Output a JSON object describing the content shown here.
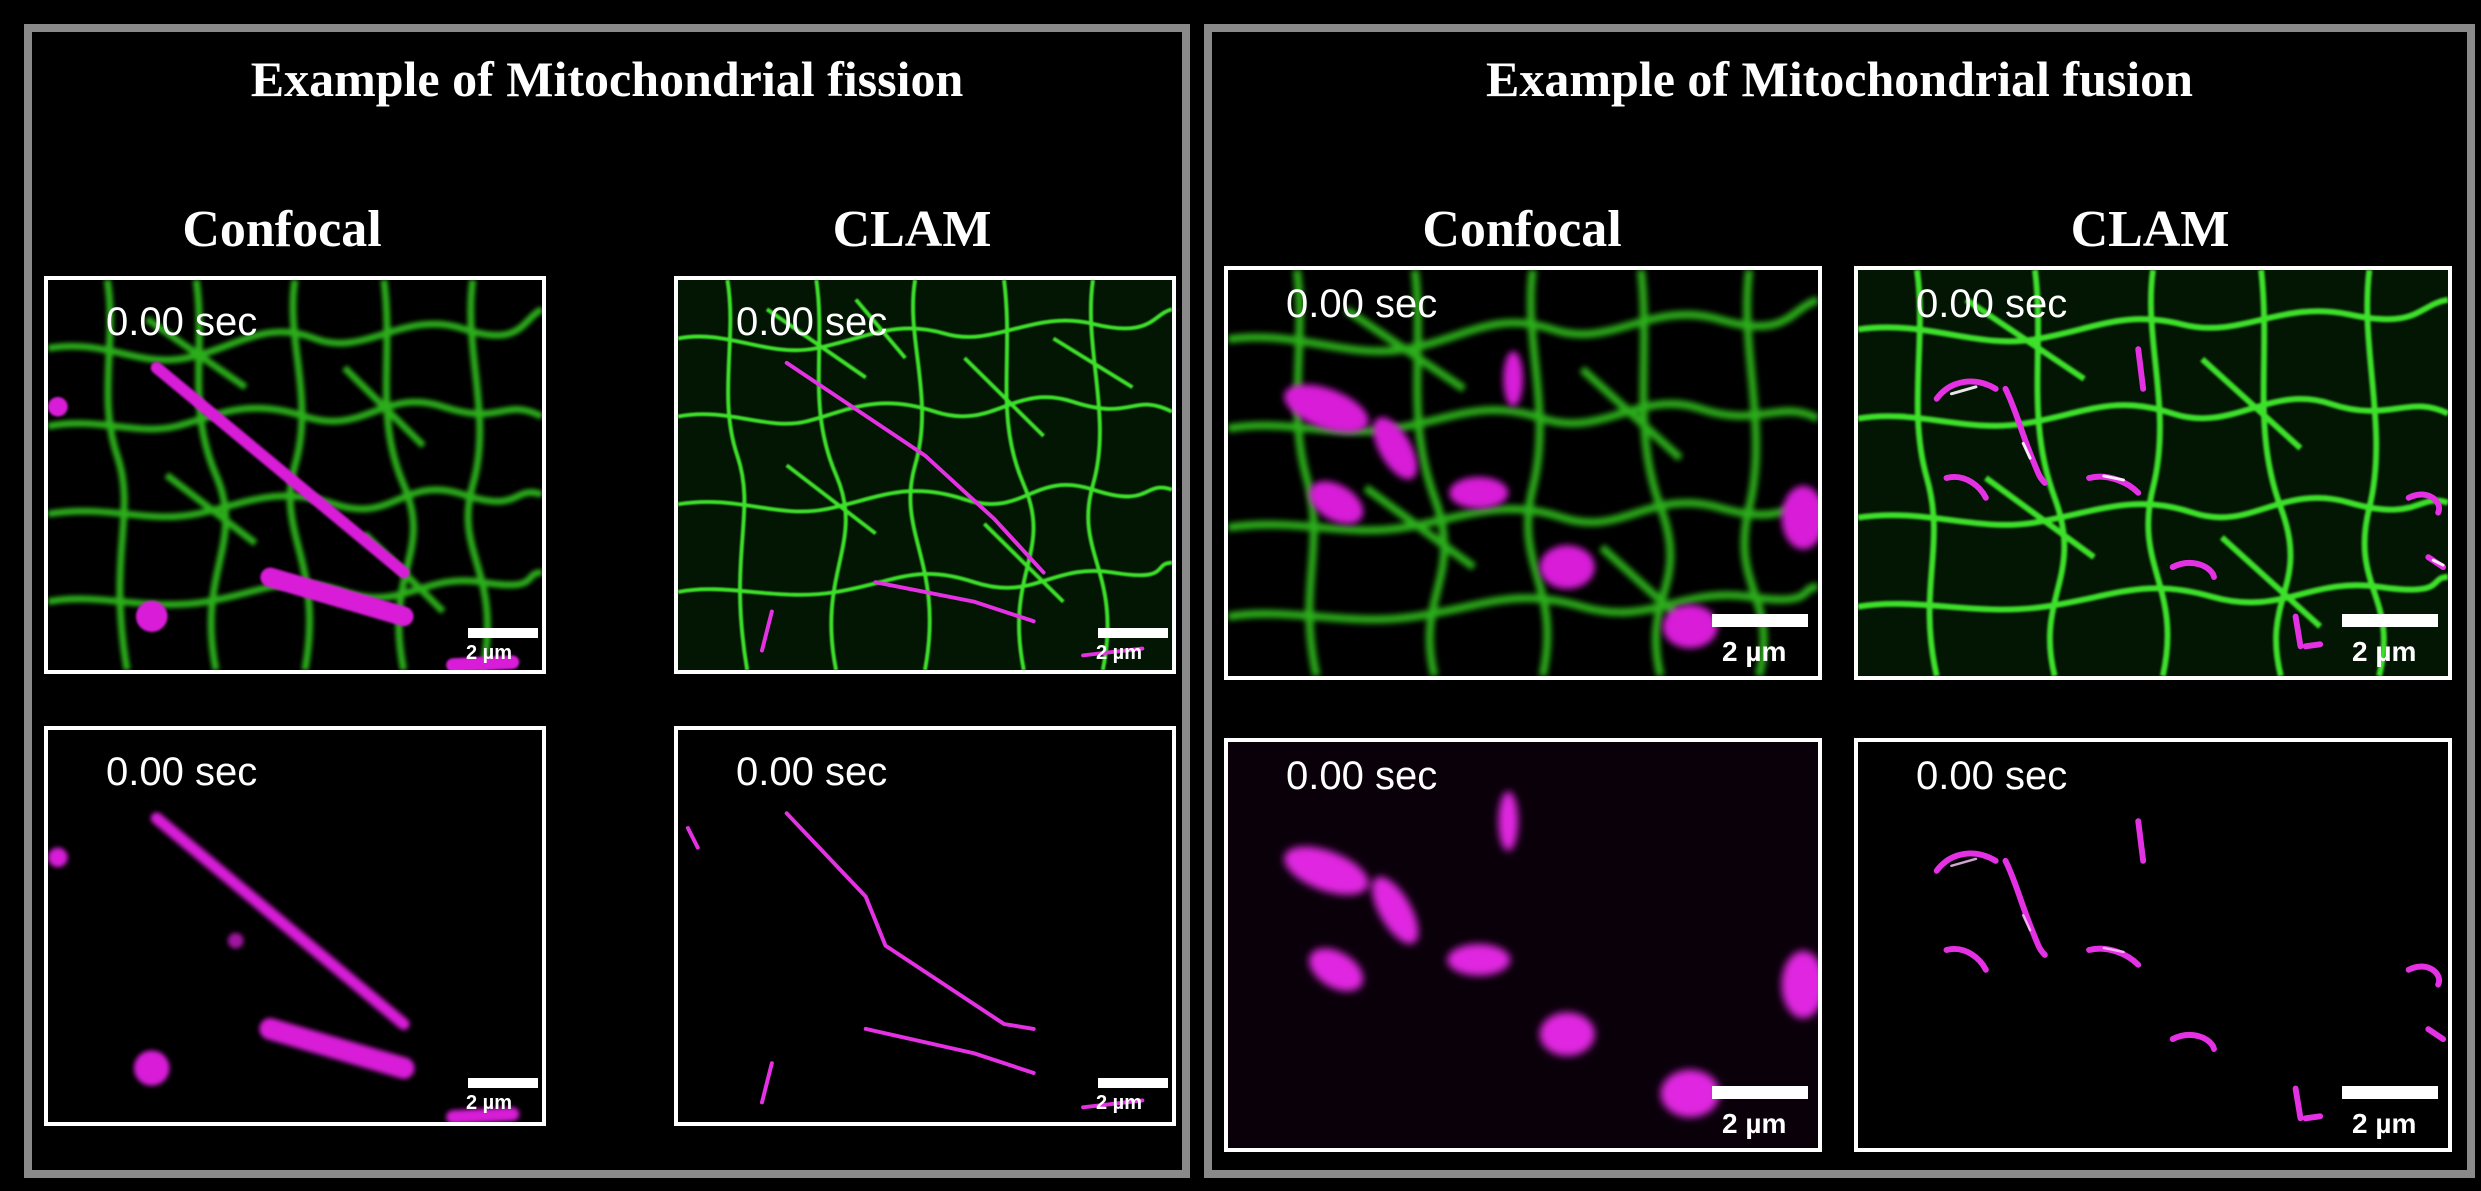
{
  "fission": {
    "title": "Example of Mitochondrial fission",
    "col_confocal": "Confocal",
    "col_clam": "CLAM",
    "frames": {
      "confocal_merge": {
        "time": "0.00 sec",
        "scale": "2 µm"
      },
      "clam_merge": {
        "time": "0.00 sec",
        "scale": "2 µm"
      },
      "confocal_mito": {
        "time": "0.00 sec",
        "scale": "2 µm"
      },
      "clam_mito": {
        "time": "0.00 sec",
        "scale": "2 µm"
      }
    }
  },
  "fusion": {
    "title": "Example of Mitochondrial fusion",
    "col_confocal": "Confocal",
    "col_clam": "CLAM",
    "frames": {
      "confocal_merge": {
        "time": "0.00 sec",
        "scale": "2 µm"
      },
      "clam_merge": {
        "time": "0.00 sec",
        "scale": "2 µm"
      },
      "confocal_mito": {
        "time": "0.00 sec",
        "scale": "2 µm"
      },
      "clam_mito": {
        "time": "0.00 sec",
        "scale": "2 µm"
      }
    }
  },
  "colors": {
    "panel_border": "#8a8a8a",
    "er_green": "#33cc22",
    "mito_magenta": "#e020e0",
    "background": "#000000"
  }
}
